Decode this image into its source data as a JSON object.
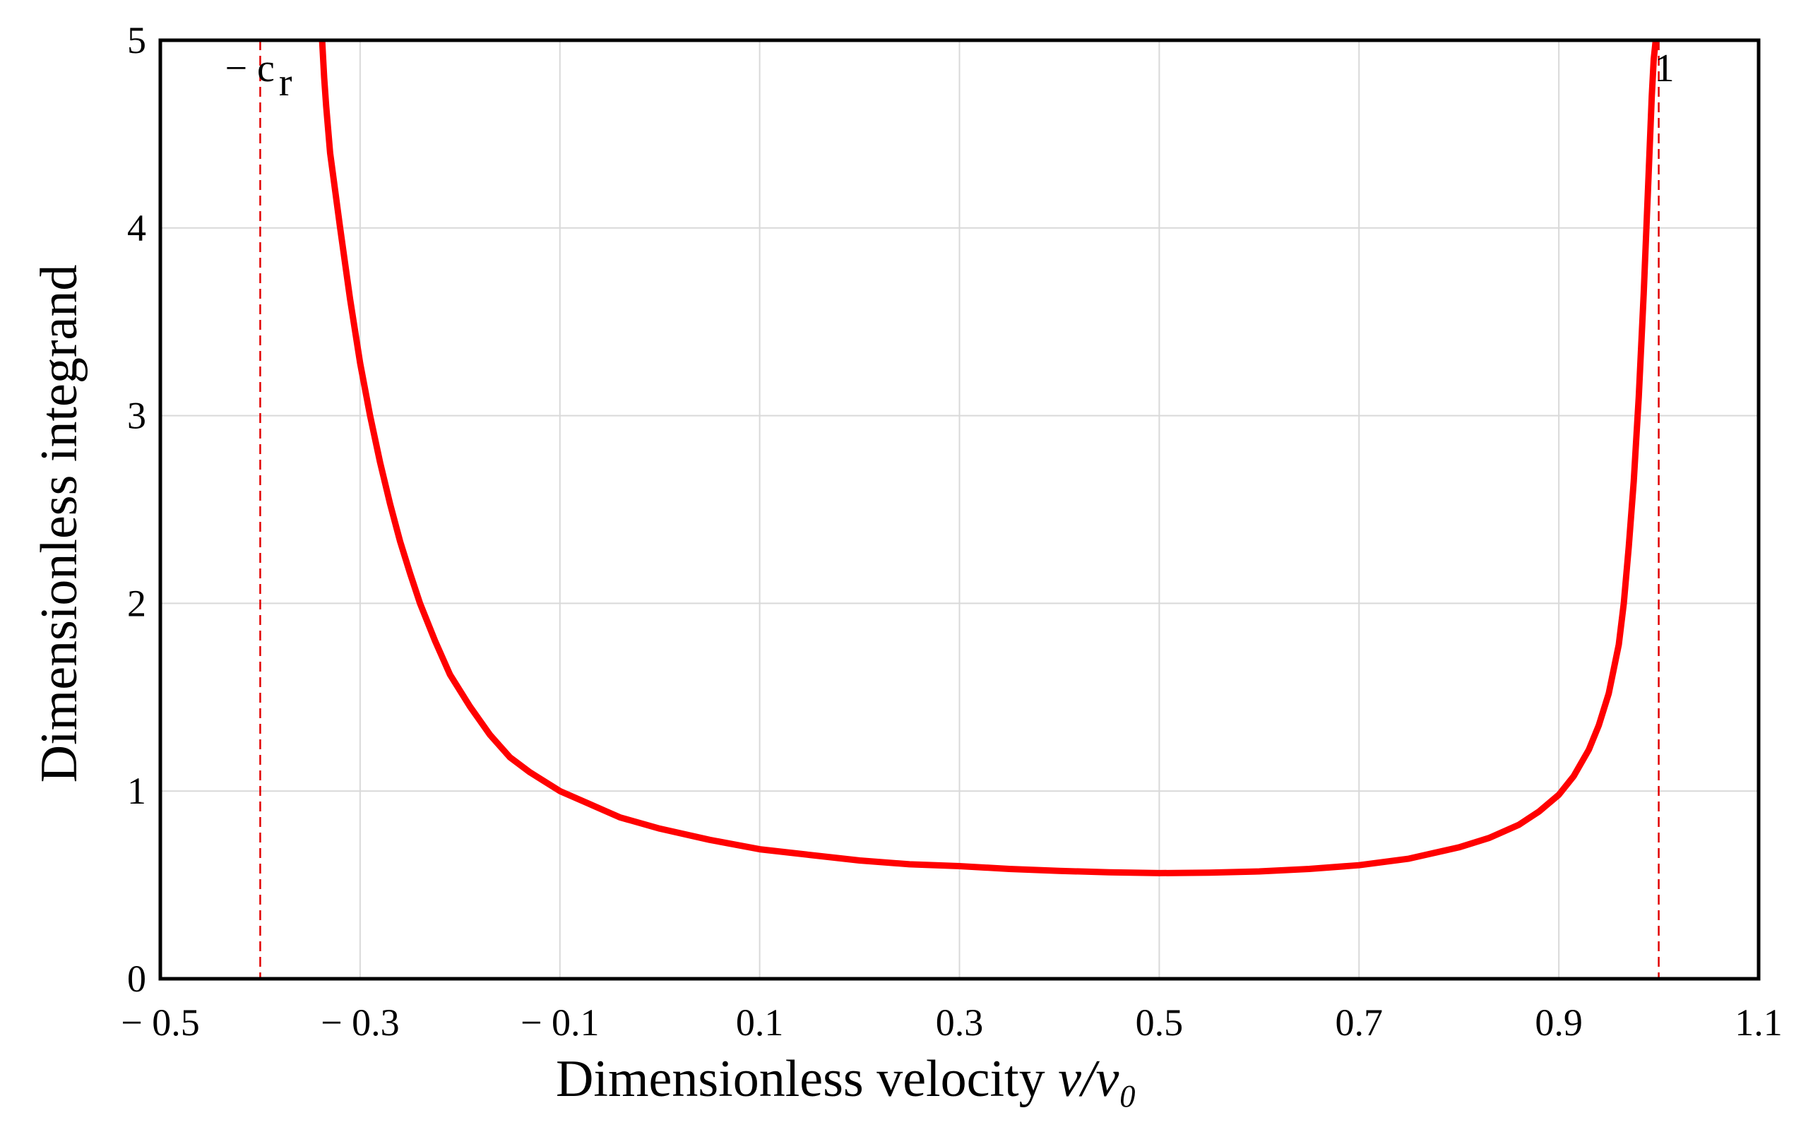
{
  "chart_data": {
    "type": "line",
    "title": "",
    "xlabel": "Dimensionless velocity ",
    "xlabel_italic": "v/v₀",
    "ylabel": "Dimensionless integrand",
    "xlim": [
      -0.5,
      1.1
    ],
    "ylim": [
      0,
      5
    ],
    "grid": true,
    "x_ticks": [
      -0.5,
      -0.3,
      -0.1,
      0.1,
      0.3,
      0.5,
      0.7,
      0.9,
      1.1
    ],
    "x_tick_labels": [
      "− 0.5",
      "− 0.3",
      "− 0.1",
      "0.1",
      "0.3",
      "0.5",
      "0.7",
      "0.9",
      "1.1"
    ],
    "y_ticks": [
      0,
      1,
      2,
      3,
      4,
      5
    ],
    "y_tick_labels": [
      "0",
      "1",
      "2",
      "3",
      "4",
      "5"
    ],
    "vlines": [
      {
        "x": -0.4,
        "label": "− c",
        "sub": "r",
        "color": "#e00000",
        "style": "dashed"
      },
      {
        "x": 1.0,
        "label": "1",
        "sub": "",
        "color": "#e00000",
        "style": "dashed"
      }
    ],
    "series": [
      {
        "name": "integrand",
        "color": "#ff0000",
        "x": [
          -0.338,
          -0.336,
          -0.334,
          -0.33,
          -0.325,
          -0.32,
          -0.31,
          -0.3,
          -0.29,
          -0.28,
          -0.27,
          -0.26,
          -0.25,
          -0.24,
          -0.225,
          -0.21,
          -0.19,
          -0.17,
          -0.15,
          -0.13,
          -0.1,
          -0.07,
          -0.04,
          0.0,
          0.05,
          0.1,
          0.15,
          0.2,
          0.25,
          0.3,
          0.35,
          0.4,
          0.45,
          0.5,
          0.55,
          0.6,
          0.65,
          0.7,
          0.75,
          0.8,
          0.83,
          0.86,
          0.88,
          0.9,
          0.915,
          0.93,
          0.94,
          0.95,
          0.96,
          0.965,
          0.97,
          0.975,
          0.98,
          0.985,
          0.99,
          0.993,
          0.995,
          0.997,
          0.998
        ],
        "values": [
          5.0,
          4.8,
          4.65,
          4.4,
          4.2,
          4.0,
          3.62,
          3.28,
          3.0,
          2.75,
          2.53,
          2.33,
          2.16,
          2.0,
          1.8,
          1.62,
          1.45,
          1.3,
          1.18,
          1.1,
          1.0,
          0.93,
          0.86,
          0.8,
          0.74,
          0.69,
          0.66,
          0.63,
          0.61,
          0.6,
          0.585,
          0.575,
          0.567,
          0.563,
          0.565,
          0.572,
          0.585,
          0.605,
          0.64,
          0.7,
          0.75,
          0.82,
          0.89,
          0.98,
          1.08,
          1.22,
          1.35,
          1.52,
          1.78,
          2.0,
          2.3,
          2.65,
          3.1,
          3.65,
          4.3,
          4.7,
          4.9,
          5.0,
          5.0
        ]
      }
    ]
  }
}
